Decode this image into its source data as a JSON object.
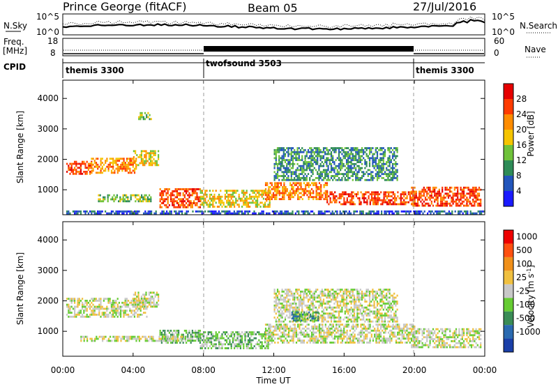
{
  "header": {
    "station": "Prince George (fitACF)",
    "beam": "Beam 05",
    "date": "27/Jul/2016"
  },
  "noise_panel": {
    "left_label": "N.Sky",
    "left_ticks": [
      "10^5",
      "10^0"
    ],
    "right_ticks": [
      "10^5",
      "10^0"
    ],
    "right_label": "N.Search"
  },
  "freq_panel": {
    "left_label_1": "Freq.",
    "left_label_2": "[MHz]",
    "left_ticks": [
      "18",
      "8"
    ],
    "right_ticks": [
      "60",
      "0"
    ],
    "right_label": "Nave"
  },
  "cpid": {
    "label": "CPID",
    "segments": [
      {
        "name": "themis 3300",
        "start_hour": 0,
        "end_hour": 8
      },
      {
        "name": "twofsound 3503",
        "start_hour": 8,
        "end_hour": 20
      },
      {
        "name": "themis 3300",
        "start_hour": 20,
        "end_hour": 24
      }
    ]
  },
  "chart_data": [
    {
      "type": "heatmap",
      "title": "Power",
      "ylabel": "Slant Range [km]",
      "xlabel": "Time UT",
      "x_range_hours": [
        0,
        24
      ],
      "ylim": [
        180,
        4600
      ],
      "y_ticks": [
        1000,
        2000,
        3000,
        4000
      ],
      "x_tick_labels": [
        "00:00",
        "04:00",
        "08:00",
        "12:00",
        "16:00",
        "20:00",
        "00:00"
      ],
      "colorbar": {
        "label": "Power [dB]",
        "ticks": [
          "4",
          "8",
          "12",
          "16",
          "20",
          "24",
          "28"
        ],
        "colors": [
          "#1a1aff",
          "#2255bb",
          "#2e8b57",
          "#6fc23a",
          "#f5c400",
          "#ff8c00",
          "#ff3b00",
          "#e60000"
        ]
      },
      "echo_regions": [
        {
          "t0": 0.2,
          "t1": 1.6,
          "r0": 1500,
          "r1": 1950,
          "level": 6
        },
        {
          "t0": 1.6,
          "t1": 4.2,
          "r0": 1550,
          "r1": 2050,
          "level": 5
        },
        {
          "t0": 4.0,
          "t1": 5.4,
          "r0": 1800,
          "r1": 2300,
          "level": 4
        },
        {
          "t0": 5.5,
          "t1": 7.8,
          "r0": 400,
          "r1": 1050,
          "level": 6
        },
        {
          "t0": 7.8,
          "t1": 11.8,
          "r0": 450,
          "r1": 1000,
          "level": 4
        },
        {
          "t0": 11.5,
          "t1": 15.0,
          "r0": 700,
          "r1": 1250,
          "level": 5
        },
        {
          "t0": 15.0,
          "t1": 20.0,
          "r0": 550,
          "r1": 950,
          "level": 6
        },
        {
          "t0": 19.8,
          "t1": 23.8,
          "r0": 450,
          "r1": 1100,
          "level": 6
        },
        {
          "t0": 2.0,
          "t1": 5.0,
          "r0": 650,
          "r1": 850,
          "level": 3
        },
        {
          "t0": 12.0,
          "t1": 19.0,
          "r0": 1300,
          "r1": 2400,
          "level": 2
        },
        {
          "t0": 4.2,
          "t1": 5.0,
          "r0": 3350,
          "r1": 3550,
          "level": 3
        },
        {
          "t0": 0.2,
          "t1": 24.0,
          "r0": 200,
          "r1": 320,
          "level": 1
        }
      ]
    },
    {
      "type": "heatmap",
      "title": "Velocity",
      "ylabel": "Slant Range [km]",
      "xlabel": "Time UT",
      "x_range_hours": [
        0,
        24
      ],
      "ylim": [
        180,
        4600
      ],
      "y_ticks": [
        1000,
        2000,
        3000,
        4000
      ],
      "x_tick_labels": [
        "00:00",
        "04:00",
        "08:00",
        "12:00",
        "16:00",
        "20:00",
        "00:00"
      ],
      "colorbar": {
        "label": "Velocity [m s-1]",
        "ticks": [
          "1000",
          "500",
          "100",
          "25",
          "-25",
          "-100",
          "-500",
          "-1000"
        ],
        "colors": [
          "#1a3fa8",
          "#2a6ab0",
          "#3a8c56",
          "#66cc33",
          "#c8c8c8",
          "#f0c040",
          "#f0901a",
          "#ff5010",
          "#ee0000"
        ]
      },
      "echo_regions": [
        {
          "t0": 0.2,
          "t1": 4.8,
          "r0": 1500,
          "r1": 2100,
          "level": 4
        },
        {
          "t0": 4.0,
          "t1": 5.4,
          "r0": 1800,
          "r1": 2300,
          "level": 4
        },
        {
          "t0": 5.5,
          "t1": 7.8,
          "r0": 600,
          "r1": 1050,
          "level": 3
        },
        {
          "t0": 7.8,
          "t1": 11.8,
          "r0": 450,
          "r1": 1000,
          "level": 3
        },
        {
          "t0": 11.5,
          "t1": 20.0,
          "r0": 600,
          "r1": 1250,
          "level": 4
        },
        {
          "t0": 19.8,
          "t1": 23.8,
          "r0": 450,
          "r1": 1100,
          "level": 4
        },
        {
          "t0": 12.0,
          "t1": 19.0,
          "r0": 1300,
          "r1": 2400,
          "level": 4
        },
        {
          "t0": 1.0,
          "t1": 7.0,
          "r0": 700,
          "r1": 850,
          "level": 4
        },
        {
          "t0": 13.0,
          "t1": 14.5,
          "r0": 1350,
          "r1": 1650,
          "level": 2
        }
      ]
    }
  ],
  "time_axis_label": "Time UT"
}
